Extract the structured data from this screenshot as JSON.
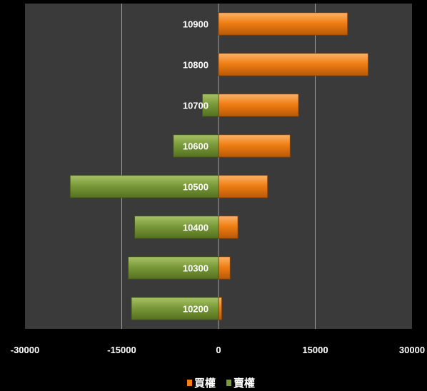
{
  "chart_data": {
    "type": "bar",
    "orientation": "horizontal",
    "categories": [
      "10900",
      "10800",
      "10700",
      "10600",
      "10500",
      "10400",
      "10300",
      "10200"
    ],
    "series": [
      {
        "name": "買權",
        "color": "#f07f14",
        "values": [
          20000,
          23200,
          12400,
          11100,
          7600,
          3000,
          1800,
          500
        ]
      },
      {
        "name": "賣權",
        "color": "#7a9a3a",
        "values": [
          0,
          0,
          -2500,
          -7000,
          -23000,
          -13000,
          -14000,
          -13500
        ]
      }
    ],
    "xlim": [
      -30000,
      30000
    ],
    "xticks": [
      "-30000",
      "-15000",
      "0",
      "15000",
      "30000"
    ],
    "xtick_values": [
      -30000,
      -15000,
      0,
      15000,
      30000
    ],
    "grid": "vertical",
    "legend_position": "bottom",
    "plot_background": "#3a3a3a",
    "title": "",
    "xlabel": "",
    "ylabel": ""
  }
}
